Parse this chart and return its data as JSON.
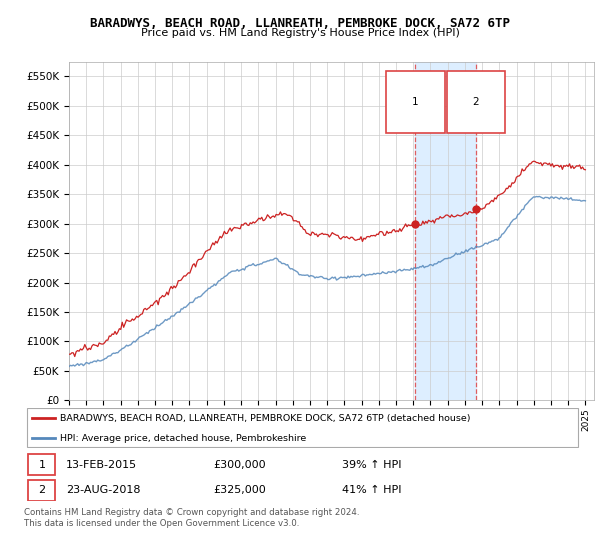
{
  "title": "BARADWYS, BEACH ROAD, LLANREATH, PEMBROKE DOCK, SA72 6TP",
  "subtitle": "Price paid vs. HM Land Registry's House Price Index (HPI)",
  "legend_line1": "BARADWYS, BEACH ROAD, LLANREATH, PEMBROKE DOCK, SA72 6TP (detached house)",
  "legend_line2": "HPI: Average price, detached house, Pembrokeshire",
  "sale1_date": "13-FEB-2015",
  "sale1_price": "£300,000",
  "sale1_hpi": "39% ↑ HPI",
  "sale2_date": "23-AUG-2018",
  "sale2_price": "£325,000",
  "sale2_hpi": "41% ↑ HPI",
  "footer": "Contains HM Land Registry data © Crown copyright and database right 2024.\nThis data is licensed under the Open Government Licence v3.0.",
  "red_color": "#cc2222",
  "blue_color": "#5588bb",
  "shade_color": "#ddeeff",
  "vline_color": "#dd4444",
  "sale1_year": 2015.12,
  "sale2_year": 2018.64,
  "sale1_price_val": 300000,
  "sale2_price_val": 325000,
  "ylim": [
    0,
    575000
  ],
  "yticks": [
    0,
    50000,
    100000,
    150000,
    200000,
    250000,
    300000,
    350000,
    400000,
    450000,
    500000,
    550000
  ],
  "xmin": 1995,
  "xmax": 2025.5
}
